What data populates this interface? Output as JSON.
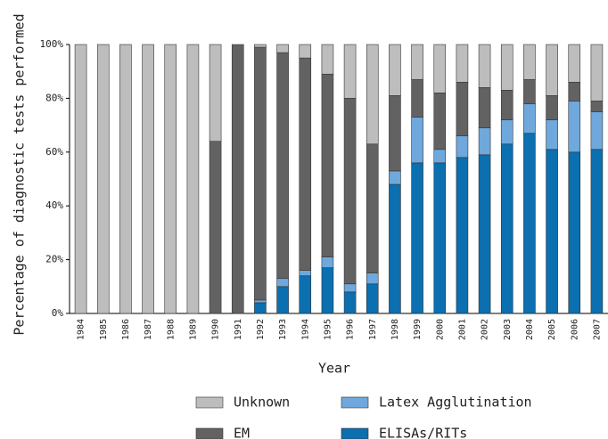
{
  "chart_data": {
    "type": "stacked_bar",
    "x_label": "Year",
    "y_label": "Percentage of diagnostic tests performed",
    "categories": [
      "1984",
      "1985",
      "1986",
      "1987",
      "1988",
      "1989",
      "1990",
      "1991",
      "1992",
      "1993",
      "1994",
      "1995",
      "1996",
      "1997",
      "1998",
      "1999",
      "2000",
      "2001",
      "2002",
      "2003",
      "2004",
      "2005",
      "2006",
      "2007"
    ],
    "series": [
      {
        "name": "ELISAs/RITs",
        "color": "#0b6fb0",
        "values": [
          0,
          0,
          0,
          0,
          0,
          0,
          0,
          0,
          4,
          10,
          14,
          17,
          8,
          11,
          48,
          56,
          56,
          58,
          59,
          63,
          67,
          61,
          60,
          61
        ]
      },
      {
        "name": "Latex Agglutination",
        "color": "#6fa8dc",
        "values": [
          0,
          0,
          0,
          0,
          0,
          0,
          0,
          0,
          1,
          3,
          2,
          4,
          3,
          4,
          5,
          17,
          5,
          8,
          10,
          9,
          11,
          11,
          19,
          14
        ]
      },
      {
        "name": "EM",
        "color": "#626262",
        "values": [
          0,
          0,
          0,
          0,
          0,
          0,
          64,
          100,
          94,
          84,
          79,
          68,
          69,
          48,
          28,
          14,
          21,
          20,
          15,
          11,
          9,
          9,
          7,
          4
        ]
      },
      {
        "name": "Unknown",
        "color": "#bdbdbd",
        "values": [
          100,
          100,
          100,
          100,
          100,
          100,
          36,
          0,
          1,
          3,
          5,
          11,
          20,
          37,
          19,
          13,
          18,
          14,
          16,
          17,
          13,
          19,
          14,
          21
        ]
      }
    ],
    "ylim": [
      0,
      100
    ],
    "yticks": [
      {
        "value": 0,
        "label": "0%"
      },
      {
        "value": 20,
        "label": "20%"
      },
      {
        "value": 40,
        "label": "40%"
      },
      {
        "value": 60,
        "label": "60%"
      },
      {
        "value": 80,
        "label": "80%"
      },
      {
        "value": 100,
        "label": "100%"
      }
    ]
  }
}
